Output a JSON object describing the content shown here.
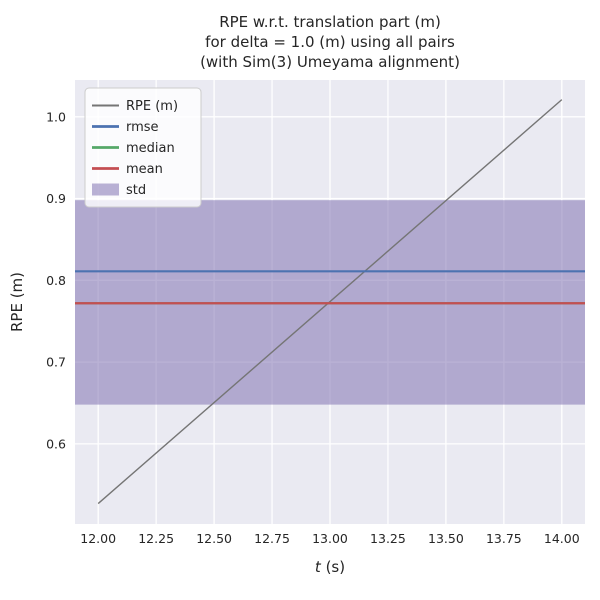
{
  "chart_data": {
    "type": "line",
    "title": "RPE w.r.t. translation part (m) for delta = 1.0 (m) using all pairs (with Sim(3) Umeyama alignment)",
    "title_lines": [
      "RPE w.r.t. translation part (m)",
      "for delta = 1.0 (m) using all pairs",
      "(with Sim(3) Umeyama alignment)"
    ],
    "xlabel": "t (s)",
    "xlabel_parts": [
      "t",
      " (s)"
    ],
    "ylabel": "RPE (m)",
    "xlim": [
      11.9,
      14.1
    ],
    "ylim": [
      0.502,
      1.045
    ],
    "x_ticks": [
      12.0,
      12.25,
      12.5,
      12.75,
      13.0,
      13.25,
      13.5,
      13.75,
      14.0
    ],
    "x_tick_labels": [
      "12.00",
      "12.25",
      "12.50",
      "12.75",
      "13.00",
      "13.25",
      "13.50",
      "13.75",
      "14.00"
    ],
    "y_ticks": [
      0.6,
      0.7,
      0.8,
      0.9,
      1.0
    ],
    "y_tick_labels": [
      "0.6",
      "0.7",
      "0.8",
      "0.9",
      "1.0"
    ],
    "grid": true,
    "axes_background": "#EAEAF2",
    "grid_color": "#FFFFFF",
    "legend_position": "upper left",
    "series": [
      {
        "name": "RPE (m)",
        "kind": "line",
        "color": "#757575",
        "linewidth": 1.4,
        "x": [
          12.0,
          14.0
        ],
        "y": [
          0.527,
          1.021
        ]
      },
      {
        "name": "rmse",
        "kind": "hline",
        "color": "#4C72B0",
        "linewidth": 2.2,
        "y": 0.811
      },
      {
        "name": "median",
        "kind": "hline",
        "color": "#55A868",
        "linewidth": 2.2,
        "y": 0.772
      },
      {
        "name": "mean",
        "kind": "hline",
        "color": "#C44E52",
        "linewidth": 2.2,
        "y": 0.772
      },
      {
        "name": "std",
        "kind": "band",
        "color": "#8172B2",
        "alpha": 0.55,
        "y0": 0.648,
        "y1": 0.898
      }
    ]
  }
}
